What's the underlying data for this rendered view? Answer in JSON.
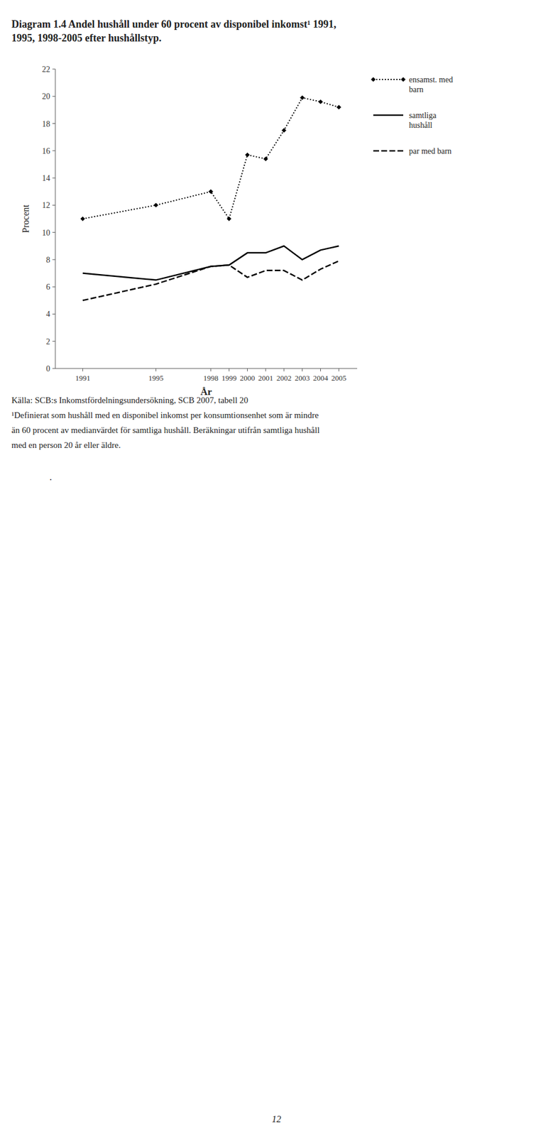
{
  "chart_data": {
    "type": "line",
    "title": "Diagram 1.4 Andel hushåll under 60 procent av disponibel inkomst¹ 1991,\n1995, 1998-2005 efter hushållstyp.",
    "xlabel": "År",
    "ylabel": "Procent",
    "x": [
      1991,
      1995,
      1998,
      1999,
      2000,
      2001,
      2002,
      2003,
      2004,
      2005
    ],
    "series": [
      {
        "name": "ensamst. med\nbarn",
        "color": "#000000",
        "line_style": "dotted",
        "marker": "diamond",
        "values": [
          11.0,
          12.0,
          13.0,
          11.0,
          15.7,
          15.4,
          17.5,
          19.9,
          19.6,
          19.2
        ]
      },
      {
        "name": "samtliga\nhushåll",
        "color": "#000000",
        "line_style": "solid",
        "values": [
          7.0,
          6.5,
          7.5,
          7.6,
          8.5,
          8.5,
          9.0,
          8.0,
          8.7,
          9.0
        ]
      },
      {
        "name": "par med barn",
        "color": "#000000",
        "line_style": "dashed",
        "values": [
          5.0,
          6.2,
          7.5,
          7.6,
          6.7,
          7.2,
          7.2,
          6.5,
          7.3,
          7.9
        ]
      }
    ],
    "xlim": [
      1989.5,
      2006
    ],
    "xticks": [
      1991,
      1995,
      1998,
      1999,
      2000,
      2001,
      2002,
      2003,
      2004,
      2005
    ],
    "ylim": [
      0,
      22
    ],
    "yticks": [
      0,
      2,
      4,
      6,
      8,
      10,
      12,
      14,
      16,
      18,
      20,
      22
    ],
    "grid": false,
    "legend": "right",
    "annotations": [
      "Källa: SCB:s Inkomstfördelningsundersökning, SCB 2007, tabell 20",
      "¹Definierat som hushåll med en disponibel inkomst per konsumtionsenhet som är mindre",
      "än 60 procent av medianvärdet för samtliga hushåll. Beräkningar utifrån samtliga hushåll",
      "med en person 20 år eller äldre.",
      ".",
      "12"
    ]
  }
}
